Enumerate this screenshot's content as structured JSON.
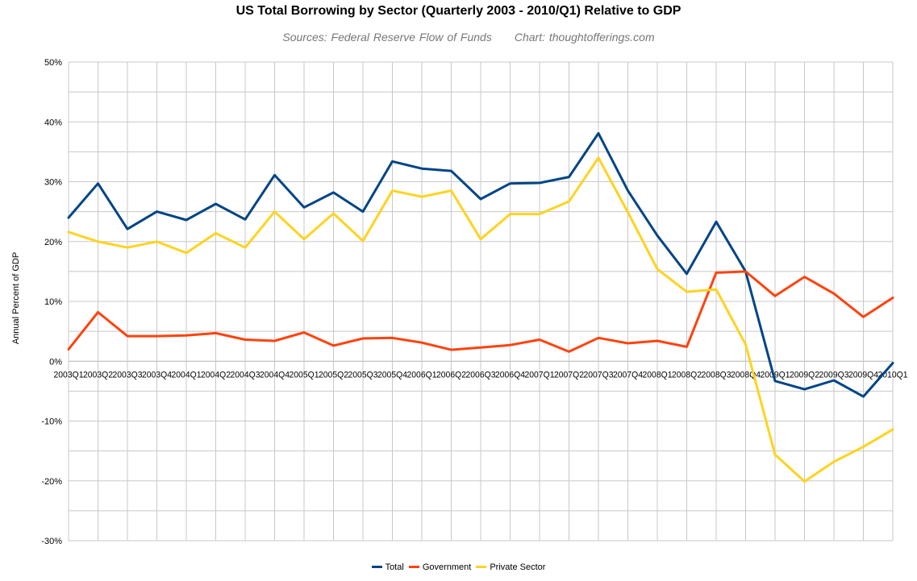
{
  "chart_data": {
    "type": "line",
    "title": "US Total Borrowing by Sector (Quarterly 2003 - 2010/Q1) Relative to GDP",
    "subtitle_source": "Sources: Federal Reserve Flow of Funds",
    "subtitle_credit": "Chart: thoughtofferings.com",
    "xlabel": "",
    "ylabel": "Annual Percent of GDP",
    "ylim": [
      -30,
      50
    ],
    "yticks": [
      "50%",
      "40%",
      "30%",
      "20%",
      "10%",
      "0%",
      "-10%",
      "-20%",
      "-30%"
    ],
    "grid": true,
    "legend_position": "bottom",
    "categories": [
      "2003Q1",
      "2003Q2",
      "2003Q3",
      "2003Q4",
      "2004Q1",
      "2004Q2",
      "2004Q3",
      "2004Q4",
      "2005Q1",
      "2005Q2",
      "2005Q3",
      "2005Q4",
      "2006Q1",
      "2006Q2",
      "2006Q3",
      "2006Q4",
      "2007Q1",
      "2007Q2",
      "2007Q3",
      "2007Q4",
      "2008Q1",
      "2008Q2",
      "2008Q3",
      "2008Q4",
      "2009Q1",
      "2009Q2",
      "2009Q3",
      "2009Q4",
      "2010Q1"
    ],
    "series": [
      {
        "name": "Total",
        "color": "#004586",
        "values": [
          24,
          29.7,
          22.1,
          25,
          23.6,
          26.3,
          23.7,
          31.1,
          25.7,
          28.2,
          25,
          33.4,
          32.2,
          31.8,
          27.1,
          29.7,
          29.8,
          30.8,
          38.1,
          28.5,
          21,
          14.6,
          23.3,
          15,
          -3.3,
          -4.7,
          -3.2,
          -5.9,
          -0.3
        ]
      },
      {
        "name": "Government",
        "color": "#ff420e",
        "values": [
          2,
          8.2,
          4.2,
          4.2,
          4.3,
          4.7,
          3.6,
          3.4,
          4.8,
          2.6,
          3.8,
          3.9,
          3.1,
          1.9,
          2.3,
          2.7,
          3.6,
          1.6,
          3.9,
          3,
          3.4,
          2.4,
          14.8,
          15,
          10.9,
          14.1,
          11.3,
          7.4,
          10.6
        ]
      },
      {
        "name": "Private Sector",
        "color": "#ffd320",
        "values": [
          21.6,
          20,
          19,
          20,
          18.1,
          21.4,
          19,
          25,
          20.4,
          24.7,
          20.1,
          28.5,
          27.5,
          28.5,
          20.4,
          24.6,
          24.6,
          26.7,
          34,
          24.9,
          15.4,
          11.6,
          12,
          2.8,
          -15.6,
          -20.1,
          -16.8,
          -14.3,
          -11.4
        ]
      }
    ]
  }
}
